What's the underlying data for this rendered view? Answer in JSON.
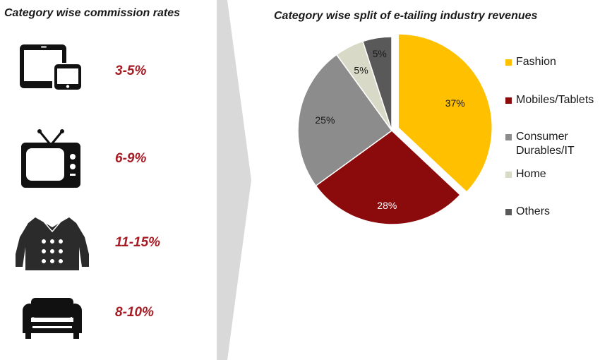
{
  "left_panel": {
    "title": "Category wise commission rates",
    "categories": [
      {
        "icon": "mobile-tablet-icon",
        "rate": "3-5%"
      },
      {
        "icon": "television-icon",
        "rate": "6-9%"
      },
      {
        "icon": "jacket-icon",
        "rate": "11-15%"
      },
      {
        "icon": "sofa-icon",
        "rate": "8-10%"
      }
    ]
  },
  "chart_data": {
    "type": "pie",
    "title": "Category wise split of e-tailing industry revenues",
    "legend_position": "right",
    "exploded_slice": "Fashion",
    "slices": [
      {
        "name": "Fashion",
        "value": 37,
        "label": "37%",
        "color": "#FFC000"
      },
      {
        "name": "Mobiles/Tablets",
        "value": 28,
        "label": "28%",
        "color": "#8B0A0C"
      },
      {
        "name": "Consumer Durables/IT",
        "value": 25,
        "label": "25%",
        "color": "#8C8C8C"
      },
      {
        "name": "Home",
        "value": 5,
        "label": "5%",
        "color": "#D9D9C7"
      },
      {
        "name": "Others",
        "value": 5,
        "label": "5%",
        "color": "#595959"
      }
    ]
  },
  "legend": {
    "items": [
      {
        "label": "Fashion",
        "color": "#FFC000"
      },
      {
        "label": "Mobiles/Tablets",
        "color": "#8B0A0C"
      },
      {
        "label": "Consumer Durables/IT",
        "color": "#8C8C8C"
      },
      {
        "label": "Home",
        "color": "#D9D9C7"
      },
      {
        "label": "Others",
        "color": "#595959"
      }
    ]
  },
  "colors": {
    "rate_text": "#A61C24",
    "icon": "#111111",
    "divider": "#D9D9D9"
  }
}
